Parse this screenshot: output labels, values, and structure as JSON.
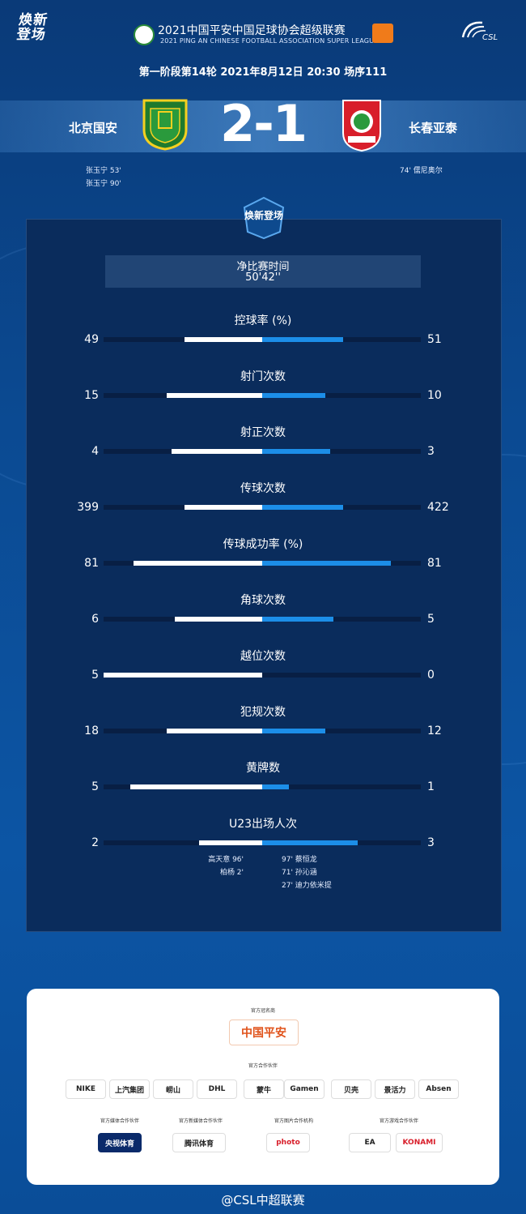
{
  "header": {
    "logo_text": "焕新登场",
    "title_cn": "2021中国平安中国足球协会超级联赛",
    "title_en": "2021 PING AN CHINESE FOOTBALL ASSOCIATION SUPER LEAGUE",
    "league_logo": "CSL"
  },
  "match": {
    "info": "第一阶段第14轮  2021年8月12日 20:30 场序111",
    "home_team": "北京国安",
    "away_team": "长春亚泰",
    "score": "2-1",
    "home_scorers": [
      "张玉宁  53'",
      "张玉宁  90'"
    ],
    "away_scorers": [
      "74'  儒尼奥尔"
    ]
  },
  "panel": {
    "emblem_text": "焕新登场",
    "time_label": "净比赛时间",
    "time_value": "50'42''"
  },
  "stats": [
    {
      "label": "控球率 (%)",
      "home": 49,
      "away": 51
    },
    {
      "label": "射门次数",
      "home": 15,
      "away": 10
    },
    {
      "label": "射正次数",
      "home": 4,
      "away": 3
    },
    {
      "label": "传球次数",
      "home": 399,
      "away": 422
    },
    {
      "label": "传球成功率 (%)",
      "home": 81,
      "away": 81
    },
    {
      "label": "角球次数",
      "home": 6,
      "away": 5
    },
    {
      "label": "越位次数",
      "home": 5,
      "away": 0
    },
    {
      "label": "犯规次数",
      "home": 18,
      "away": 12
    },
    {
      "label": "黄牌数",
      "home": 5,
      "away": 1
    },
    {
      "label": "U23出场人次",
      "home": 2,
      "away": 3
    }
  ],
  "bar_fractions": [
    {
      "home": 0.49,
      "away": 0.51
    },
    {
      "home": 0.6,
      "away": 0.4
    },
    {
      "home": 0.57,
      "away": 0.43
    },
    {
      "home": 0.49,
      "away": 0.51
    },
    {
      "home": 0.81,
      "away": 0.81
    },
    {
      "home": 0.55,
      "away": 0.45
    },
    {
      "home": 1.0,
      "away": 0.0
    },
    {
      "home": 0.6,
      "away": 0.4
    },
    {
      "home": 0.83,
      "away": 0.17
    },
    {
      "home": 0.4,
      "away": 0.6
    }
  ],
  "u23": {
    "home": [
      "高天意  96'",
      "柏杨  2'"
    ],
    "away": [
      "97'  蔡恒龙",
      "71'  孙沁涵",
      "27'  迪力依米提"
    ]
  },
  "sponsors": {
    "title_sponsor_heading": "官方冠名商",
    "title_sponsor": "中国平安",
    "partners_heading": "官方合作伙伴",
    "partners": [
      "NIKE",
      "上汽集团",
      "崂山",
      "DHL",
      "蒙牛",
      "Gamen",
      "贝壳",
      "景活力",
      "Absen"
    ],
    "media_heading": "官方媒体合作伙伴",
    "media": "央视体育",
    "digital_heading": "官方新媒体合作伙伴",
    "digital": "腾讯体育",
    "photo_heading": "官方图片合作机构",
    "photo": "photo",
    "game_heading": "官方游戏合作伙伴",
    "games": [
      "EA",
      "KONAMI"
    ]
  },
  "footer": "@CSL中超联赛",
  "colors": {
    "home_bar": "#ffffff",
    "away_bar": "#1c8ee8",
    "bg": "#0b4a92"
  }
}
